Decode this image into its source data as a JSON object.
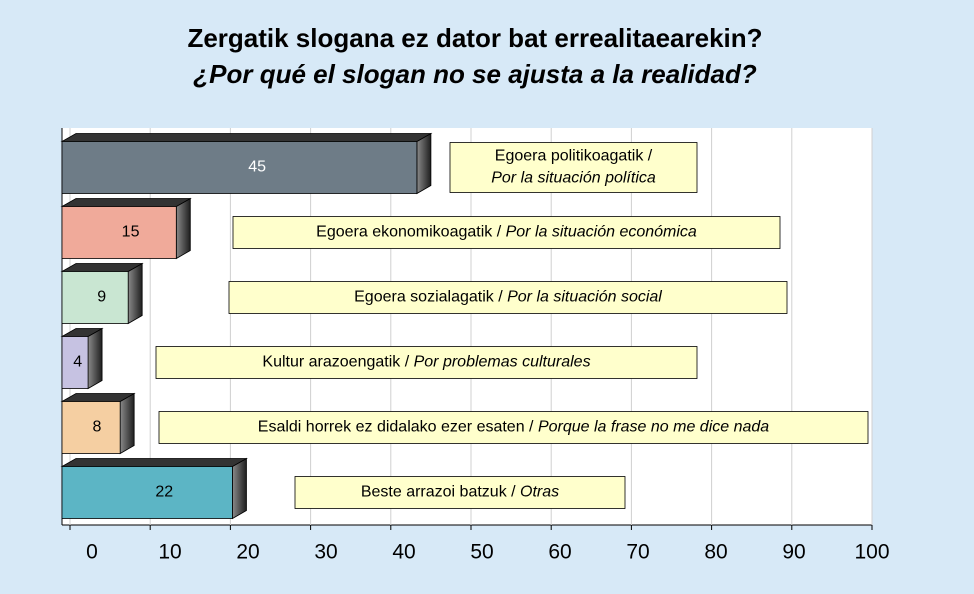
{
  "chart_data": {
    "type": "bar",
    "title": "Zergatik  slogana ez dator bat errealitaearekin?",
    "subtitle": "¿Por qué el slogan no se ajusta a la realidad?",
    "categories": [
      [
        "Egoera politikoagatik /",
        "Por la situación política"
      ],
      [
        "Egoera ekonomikoagatik  / ",
        "Por la situación económica"
      ],
      [
        "Egoera sozialagatik / ",
        "Por la situación social"
      ],
      [
        "Kultur arazoengatik / ",
        "Por problemas culturales"
      ],
      [
        "Esaldi horrek ez didalako ezer esaten / ",
        "Porque la frase no me dice nada"
      ],
      [
        "Beste arrazoi batzuk / ",
        "Otras"
      ]
    ],
    "values": [
      45,
      15,
      9,
      4,
      8,
      22
    ],
    "colors": [
      "#6e7c87",
      "#f0aa9a",
      "#c9e6d2",
      "#c6c2e2",
      "#f5cfa2",
      "#5cb5c5"
    ],
    "xlim": [
      0,
      100
    ],
    "xticks": [
      0,
      10,
      20,
      30,
      40,
      50,
      60,
      70,
      80,
      90,
      100
    ],
    "grid": true
  }
}
